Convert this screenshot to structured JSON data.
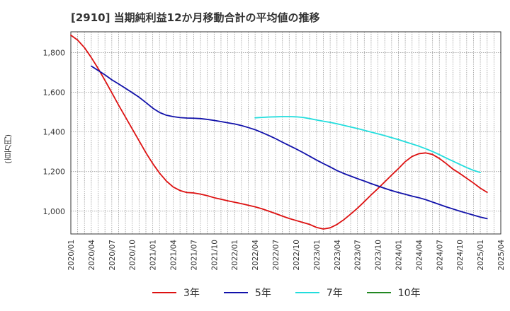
{
  "chart_data": {
    "type": "line",
    "title": "[2910]  当期純利益12か月移動合計の平均値の推移",
    "ylabel": "(百万円)",
    "xlabel": "",
    "x_ticks": [
      "2020/01",
      "2020/04",
      "2020/07",
      "2020/10",
      "2021/01",
      "2021/04",
      "2021/07",
      "2021/10",
      "2022/01",
      "2022/04",
      "2022/07",
      "2022/10",
      "2023/01",
      "2023/04",
      "2023/07",
      "2023/10",
      "2024/01",
      "2024/04",
      "2024/07",
      "2024/10",
      "2025/01",
      "2025/04"
    ],
    "y_ticks": [
      "1,000",
      "1,200",
      "1,400",
      "1,600",
      "1,800"
    ],
    "ylim": [
      885,
      1905
    ],
    "grid": true,
    "legend_position": "bottom",
    "series": [
      {
        "name": "3年",
        "color": "#dd1111",
        "points": [
          [
            "2020/01",
            1888
          ],
          [
            "2020/02",
            1863
          ],
          [
            "2020/03",
            1825
          ],
          [
            "2020/04",
            1775
          ],
          [
            "2020/05",
            1720
          ],
          [
            "2020/06",
            1660
          ],
          [
            "2020/07",
            1598
          ],
          [
            "2020/08",
            1535
          ],
          [
            "2020/09",
            1475
          ],
          [
            "2020/10",
            1415
          ],
          [
            "2020/11",
            1355
          ],
          [
            "2020/12",
            1295
          ],
          [
            "2021/01",
            1240
          ],
          [
            "2021/02",
            1192
          ],
          [
            "2021/03",
            1152
          ],
          [
            "2021/04",
            1122
          ],
          [
            "2021/05",
            1104
          ],
          [
            "2021/06",
            1094
          ],
          [
            "2021/07",
            1092
          ],
          [
            "2021/08",
            1086
          ],
          [
            "2021/09",
            1078
          ],
          [
            "2021/10",
            1068
          ],
          [
            "2021/11",
            1060
          ],
          [
            "2021/12",
            1052
          ],
          [
            "2022/01",
            1045
          ],
          [
            "2022/02",
            1038
          ],
          [
            "2022/03",
            1030
          ],
          [
            "2022/04",
            1022
          ],
          [
            "2022/05",
            1012
          ],
          [
            "2022/06",
            1000
          ],
          [
            "2022/07",
            988
          ],
          [
            "2022/08",
            975
          ],
          [
            "2022/09",
            963
          ],
          [
            "2022/10",
            953
          ],
          [
            "2022/11",
            943
          ],
          [
            "2022/12",
            933
          ],
          [
            "2023/01",
            918
          ],
          [
            "2023/02",
            910
          ],
          [
            "2023/03",
            916
          ],
          [
            "2023/04",
            933
          ],
          [
            "2023/05",
            957
          ],
          [
            "2023/06",
            985
          ],
          [
            "2023/07",
            1015
          ],
          [
            "2023/08",
            1048
          ],
          [
            "2023/09",
            1082
          ],
          [
            "2023/10",
            1114
          ],
          [
            "2023/11",
            1148
          ],
          [
            "2023/12",
            1182
          ],
          [
            "2024/01",
            1215
          ],
          [
            "2024/02",
            1250
          ],
          [
            "2024/03",
            1276
          ],
          [
            "2024/04",
            1290
          ],
          [
            "2024/05",
            1294
          ],
          [
            "2024/06",
            1286
          ],
          [
            "2024/07",
            1266
          ],
          [
            "2024/08",
            1240
          ],
          [
            "2024/09",
            1212
          ],
          [
            "2024/10",
            1190
          ],
          [
            "2024/11",
            1166
          ],
          [
            "2024/12",
            1142
          ],
          [
            "2025/01",
            1116
          ],
          [
            "2025/02",
            1095
          ]
        ]
      },
      {
        "name": "5年",
        "color": "#1111aa",
        "points": [
          [
            "2020/04",
            1732
          ],
          [
            "2020/05",
            1710
          ],
          [
            "2020/06",
            1688
          ],
          [
            "2020/07",
            1663
          ],
          [
            "2020/08",
            1642
          ],
          [
            "2020/09",
            1620
          ],
          [
            "2020/10",
            1598
          ],
          [
            "2020/11",
            1575
          ],
          [
            "2020/12",
            1548
          ],
          [
            "2021/01",
            1520
          ],
          [
            "2021/02",
            1498
          ],
          [
            "2021/03",
            1484
          ],
          [
            "2021/04",
            1477
          ],
          [
            "2021/05",
            1472
          ],
          [
            "2021/06",
            1470
          ],
          [
            "2021/07",
            1469
          ],
          [
            "2021/08",
            1467
          ],
          [
            "2021/09",
            1463
          ],
          [
            "2021/10",
            1458
          ],
          [
            "2021/11",
            1452
          ],
          [
            "2021/12",
            1446
          ],
          [
            "2022/01",
            1440
          ],
          [
            "2022/02",
            1432
          ],
          [
            "2022/03",
            1422
          ],
          [
            "2022/04",
            1411
          ],
          [
            "2022/05",
            1397
          ],
          [
            "2022/06",
            1382
          ],
          [
            "2022/07",
            1366
          ],
          [
            "2022/08",
            1348
          ],
          [
            "2022/09",
            1331
          ],
          [
            "2022/10",
            1314
          ],
          [
            "2022/11",
            1296
          ],
          [
            "2022/12",
            1277
          ],
          [
            "2023/01",
            1258
          ],
          [
            "2023/02",
            1240
          ],
          [
            "2023/03",
            1223
          ],
          [
            "2023/04",
            1205
          ],
          [
            "2023/05",
            1190
          ],
          [
            "2023/06",
            1177
          ],
          [
            "2023/07",
            1164
          ],
          [
            "2023/08",
            1152
          ],
          [
            "2023/09",
            1139
          ],
          [
            "2023/10",
            1127
          ],
          [
            "2023/11",
            1115
          ],
          [
            "2023/12",
            1104
          ],
          [
            "2024/01",
            1094
          ],
          [
            "2024/02",
            1085
          ],
          [
            "2024/03",
            1076
          ],
          [
            "2024/04",
            1068
          ],
          [
            "2024/05",
            1058
          ],
          [
            "2024/06",
            1046
          ],
          [
            "2024/07",
            1034
          ],
          [
            "2024/08",
            1022
          ],
          [
            "2024/09",
            1011
          ],
          [
            "2024/10",
            1000
          ],
          [
            "2024/11",
            990
          ],
          [
            "2024/12",
            980
          ],
          [
            "2025/01",
            970
          ],
          [
            "2025/02",
            962
          ]
        ]
      },
      {
        "name": "7年",
        "color": "#22dddd",
        "points": [
          [
            "2022/04",
            1471
          ],
          [
            "2022/05",
            1473
          ],
          [
            "2022/06",
            1475
          ],
          [
            "2022/07",
            1476
          ],
          [
            "2022/08",
            1477
          ],
          [
            "2022/09",
            1477
          ],
          [
            "2022/10",
            1476
          ],
          [
            "2022/11",
            1473
          ],
          [
            "2022/12",
            1467
          ],
          [
            "2023/01",
            1460
          ],
          [
            "2023/02",
            1454
          ],
          [
            "2023/03",
            1448
          ],
          [
            "2023/04",
            1441
          ],
          [
            "2023/05",
            1433
          ],
          [
            "2023/06",
            1425
          ],
          [
            "2023/07",
            1417
          ],
          [
            "2023/08",
            1408
          ],
          [
            "2023/09",
            1399
          ],
          [
            "2023/10",
            1390
          ],
          [
            "2023/11",
            1381
          ],
          [
            "2023/12",
            1371
          ],
          [
            "2024/01",
            1361
          ],
          [
            "2024/02",
            1350
          ],
          [
            "2024/03",
            1339
          ],
          [
            "2024/04",
            1328
          ],
          [
            "2024/05",
            1315
          ],
          [
            "2024/06",
            1301
          ],
          [
            "2024/07",
            1285
          ],
          [
            "2024/08",
            1268
          ],
          [
            "2024/09",
            1252
          ],
          [
            "2024/10",
            1236
          ],
          [
            "2024/11",
            1220
          ],
          [
            "2024/12",
            1206
          ],
          [
            "2025/01",
            1195
          ]
        ]
      },
      {
        "name": "10年",
        "color": "#228822",
        "points": []
      }
    ]
  }
}
